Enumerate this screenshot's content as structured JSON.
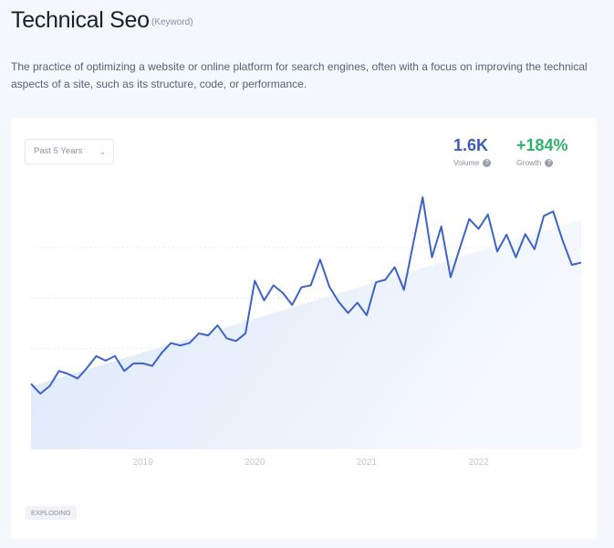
{
  "header": {
    "title": "Technical Seo",
    "type_label": "(Keyword)"
  },
  "description": "The practice of optimizing a website or online platform for search engines, often with a focus on improving the technical aspects of a site, such as its structure, code, or performance.",
  "controls": {
    "range_select": "Past 5 Years"
  },
  "stats": {
    "volume": "1.6K",
    "volume_label": "Volume",
    "growth": "+184%",
    "growth_label": "Growth"
  },
  "colors": {
    "volume": "#3b5cb8",
    "growth": "#2fb36b",
    "line": "#3d63c9",
    "fill": "#dde8f8"
  },
  "badge": "EXPLODING",
  "chart_data": {
    "type": "line",
    "x_start": "2018-01",
    "x_end": "2022-12",
    "x_interval": "monthly",
    "xtick_labels": [
      "2019",
      "2020",
      "2021",
      "2022"
    ],
    "y_axis_labels_shown": false,
    "ylim": [
      0,
      104
    ],
    "grid": "horizontal dashed",
    "series": [
      {
        "values": [
          26.0,
          22.1,
          25.1,
          31.1,
          29.9,
          28.1,
          32.3,
          37.0,
          35.2,
          37.0,
          31.1,
          34.1,
          34.1,
          33.1,
          38.2,
          42.2,
          41.2,
          42.2,
          46.0,
          45.2,
          49.2,
          44.0,
          43.0,
          46.0,
          66.9,
          59.1,
          65.1,
          62.1,
          57.3,
          64.3,
          65.1,
          75.3,
          64.5,
          58.5,
          54.1,
          58.2,
          53.2,
          66.3,
          67.3,
          72.3,
          63.3,
          81.8,
          100,
          76.2,
          88.4,
          68.3,
          80.0,
          91.4,
          87.5,
          93.2,
          78.5,
          85.2,
          76.2,
          85.4,
          79.4,
          92.6,
          94.4,
          83.0,
          73.2,
          74.1
        ]
      }
    ],
    "trend": {
      "start": 25,
      "end": 91
    }
  }
}
